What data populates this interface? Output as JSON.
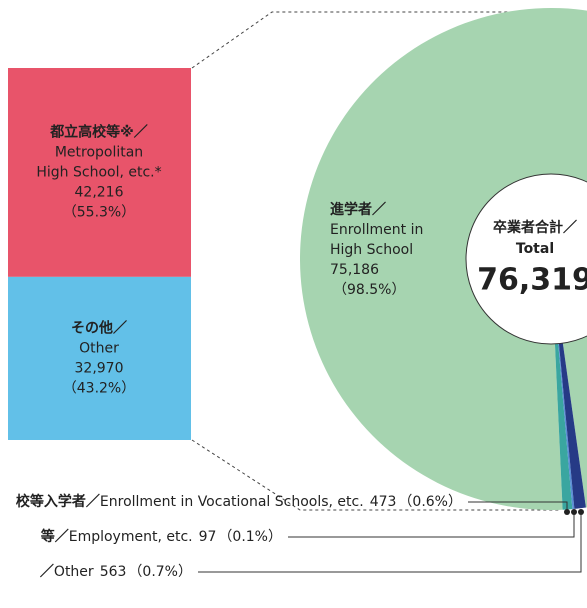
{
  "chart_data": {
    "type": "pie",
    "center": {
      "label_lines": [
        "卒業者合計／",
        "Total"
      ],
      "total": 76319,
      "total_label": "76,319"
    },
    "slices": [
      {
        "name_lines": [
          "進学者／",
          "Enrollment in",
          "High School"
        ],
        "value": 75186,
        "value_label": "75,186",
        "percent_label": "（98.5%）",
        "color": "#a6d4b0"
      },
      {
        "name_lines": [
          "校等入学者／",
          "Enrollment in Vocational Schools, etc."
        ],
        "value": 473,
        "percent_label": "（0.6%）",
        "color": "#3aa6a0"
      },
      {
        "name_lines": [
          "等／",
          "Employment, etc."
        ],
        "value": 97,
        "percent_label": "（0.1%）",
        "color": "#5b8fd6"
      },
      {
        "name_lines": [
          "／",
          "Other"
        ],
        "value": 563,
        "percent_label": "（0.7%）",
        "color": "#263a86"
      }
    ],
    "breakdown": [
      {
        "name_lines": [
          "都立高校等※／",
          "Metropolitan",
          "High School, etc.*"
        ],
        "value": 42216,
        "value_label": "42,216",
        "percent_label": "（55.3%）",
        "color": "#e8546a"
      },
      {
        "name_lines": [
          "その他／",
          "Other"
        ],
        "value": 32970,
        "value_label": "32,970",
        "percent_label": "（43.2%）",
        "color": "#62c0e8"
      }
    ]
  }
}
